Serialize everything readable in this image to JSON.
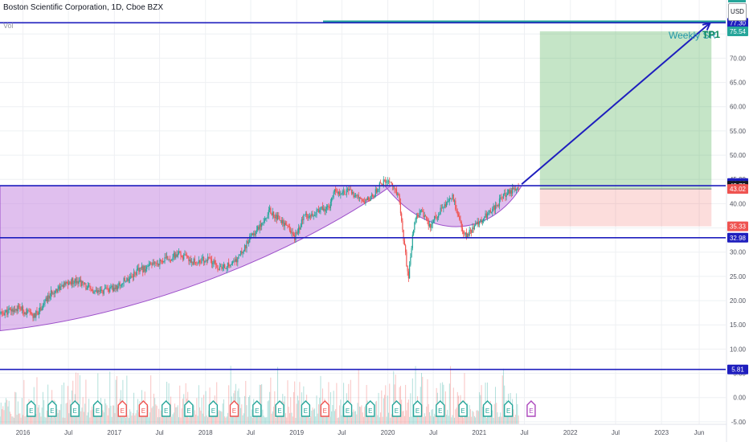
{
  "header": {
    "symbol_title": "Boston Scientific Corporation, 1D, Cboe BZX",
    "volume_label": "Vol",
    "currency": "USD"
  },
  "annotations": {
    "weekly_label": "Weekly SR",
    "tp_label": "TP1"
  },
  "chart_data": {
    "type": "candlestick",
    "title": "Boston Scientific Corporation, 1D, Cboe BZX",
    "y_range": [
      -7.5,
      82
    ],
    "y_ticks": [
      -5,
      0,
      5,
      10,
      15,
      20,
      25,
      30,
      35,
      40,
      45,
      50,
      55,
      60,
      65,
      70,
      75
    ],
    "y_tick_labels": [
      "-5.00",
      "0.00",
      "5.00",
      "10.00",
      "15.00",
      "20.00",
      "25.00",
      "30.00",
      "35.00",
      "40.00",
      "45.00",
      "50.00",
      "55.00",
      "60.00",
      "65.00",
      "70.00",
      "75.00"
    ],
    "x_ticks": [
      {
        "label": "2016",
        "date": "2016-01-01"
      },
      {
        "label": "Jul",
        "date": "2016-07-01"
      },
      {
        "label": "2017",
        "date": "2017-01-01"
      },
      {
        "label": "Jul",
        "date": "2017-07-01"
      },
      {
        "label": "2018",
        "date": "2018-01-01"
      },
      {
        "label": "Jul",
        "date": "2018-07-01"
      },
      {
        "label": "2019",
        "date": "2019-01-01"
      },
      {
        "label": "Jul",
        "date": "2019-07-01"
      },
      {
        "label": "2020",
        "date": "2020-01-01"
      },
      {
        "label": "Jul",
        "date": "2020-07-01"
      },
      {
        "label": "2021",
        "date": "2021-01-01"
      },
      {
        "label": "Jul",
        "date": "2021-07-01"
      },
      {
        "label": "2022",
        "date": "2022-01-01"
      },
      {
        "label": "Jul",
        "date": "2022-07-01"
      },
      {
        "label": "2023",
        "date": "2023-01-01"
      },
      {
        "label": "Jun",
        "date": "2023-06-01"
      }
    ],
    "price_path": [
      {
        "date": "2015-10-01",
        "price": 17.2
      },
      {
        "date": "2015-12-15",
        "price": 18.5
      },
      {
        "date": "2016-02-15",
        "price": 16.7
      },
      {
        "date": "2016-05-01",
        "price": 22.0
      },
      {
        "date": "2016-08-01",
        "price": 24.4
      },
      {
        "date": "2016-10-15",
        "price": 21.5
      },
      {
        "date": "2017-01-01",
        "price": 22.5
      },
      {
        "date": "2017-04-01",
        "price": 26.0
      },
      {
        "date": "2017-07-01",
        "price": 28.0
      },
      {
        "date": "2017-09-15",
        "price": 29.5
      },
      {
        "date": "2017-11-15",
        "price": 28.0
      },
      {
        "date": "2018-01-15",
        "price": 28.5
      },
      {
        "date": "2018-03-01",
        "price": 26.5
      },
      {
        "date": "2018-05-01",
        "price": 28.0
      },
      {
        "date": "2018-07-01",
        "price": 33.0
      },
      {
        "date": "2018-09-15",
        "price": 38.5
      },
      {
        "date": "2018-11-01",
        "price": 36.5
      },
      {
        "date": "2018-12-24",
        "price": 33.0
      },
      {
        "date": "2019-02-01",
        "price": 37.5
      },
      {
        "date": "2019-04-01",
        "price": 38.5
      },
      {
        "date": "2019-05-15",
        "price": 39.5
      },
      {
        "date": "2019-06-01",
        "price": 42.5
      },
      {
        "date": "2019-08-01",
        "price": 42.5
      },
      {
        "date": "2019-09-15",
        "price": 40.5
      },
      {
        "date": "2019-11-01",
        "price": 41.5
      },
      {
        "date": "2019-12-01",
        "price": 44.0
      },
      {
        "date": "2020-01-10",
        "price": 44.8
      },
      {
        "date": "2020-02-15",
        "price": 41.0
      },
      {
        "date": "2020-03-23",
        "price": 24.5
      },
      {
        "date": "2020-04-15",
        "price": 36.0
      },
      {
        "date": "2020-05-15",
        "price": 38.5
      },
      {
        "date": "2020-06-15",
        "price": 35.0
      },
      {
        "date": "2020-08-01",
        "price": 39.0
      },
      {
        "date": "2020-09-15",
        "price": 41.5
      },
      {
        "date": "2020-10-20",
        "price": 35.5
      },
      {
        "date": "2020-11-10",
        "price": 33.0
      },
      {
        "date": "2020-12-15",
        "price": 35.5
      },
      {
        "date": "2021-01-15",
        "price": 37.0
      },
      {
        "date": "2021-03-01",
        "price": 39.0
      },
      {
        "date": "2021-04-15",
        "price": 42.0
      },
      {
        "date": "2021-05-15",
        "price": 42.8
      },
      {
        "date": "2021-06-10",
        "price": 43.2
      }
    ],
    "horizontal_levels": [
      {
        "price": 77.3,
        "label": "77.30",
        "color": "#1e1ebe"
      },
      {
        "price": 43.7,
        "label": "43.70",
        "color": "#1e1ebe"
      },
      {
        "price": 32.98,
        "label": "32.98",
        "color": "#1e1ebe"
      },
      {
        "price": 5.81,
        "label": "5.81",
        "color": "#1e1ebe"
      }
    ],
    "price_tags": [
      {
        "price": 77.3,
        "label": "77.30",
        "color": "#1e1ebe"
      },
      {
        "price": 75.54,
        "label": "75.54",
        "color": "#26a69a"
      },
      {
        "price": 44.25,
        "label": "44.25",
        "color": "#1e1ebe"
      },
      {
        "price": 43.7,
        "label": "43.70",
        "color": "#131722"
      },
      {
        "price": 43.02,
        "label": "43.02",
        "color": "#ef5350"
      },
      {
        "price": 35.33,
        "label": "35.33",
        "color": "#ef5350"
      },
      {
        "price": 32.98,
        "label": "32.98",
        "color": "#1e1ebe"
      },
      {
        "price": 5.81,
        "label": "5.81",
        "color": "#1e1ebe"
      }
    ],
    "position_tool": {
      "type": "long",
      "entry": 43.02,
      "target": 75.54,
      "stop": 35.33,
      "start_date": "2021-09-01",
      "end_date": "2023-07-20",
      "profit_color": "#4caf50",
      "loss_color": "#ef5350"
    },
    "arrow": {
      "from_date": "2021-06-20",
      "from_price": 44.0,
      "to_date": "2023-07-15",
      "to_price": 77.3,
      "color": "#1e1ebe"
    },
    "earnings_marker_label": "E",
    "earnings_dates": [
      "2016-02-03",
      "2016-04-27",
      "2016-07-27",
      "2016-10-26",
      "2017-02-02",
      "2017-04-27",
      "2017-07-27",
      "2017-10-26",
      "2018-02-01",
      "2018-04-26",
      "2018-07-26",
      "2018-10-25",
      "2019-02-06",
      "2019-04-24",
      "2019-07-24",
      "2019-10-23",
      "2020-02-05",
      "2020-04-29",
      "2020-07-29",
      "2020-10-28",
      "2021-02-03",
      "2021-04-28",
      "2021-07-28"
    ],
    "earnings_past_colors": {
      "beat": "#26a69a",
      "miss": "#ef5350",
      "upcoming": "#ab47bc"
    },
    "earnings_miss_dates": [
      "2017-02-02",
      "2017-04-27",
      "2018-04-26",
      "2019-04-24"
    ],
    "earnings_upcoming_dates": [
      "2021-07-28"
    ],
    "colors": {
      "up": "#26a69a",
      "down": "#ef5350",
      "arc_fill": "#c68ae0",
      "arc_stroke": "#9c4fc9",
      "grid": "#eef0f3",
      "level_line": "#1e1ebe"
    },
    "grid": true
  }
}
